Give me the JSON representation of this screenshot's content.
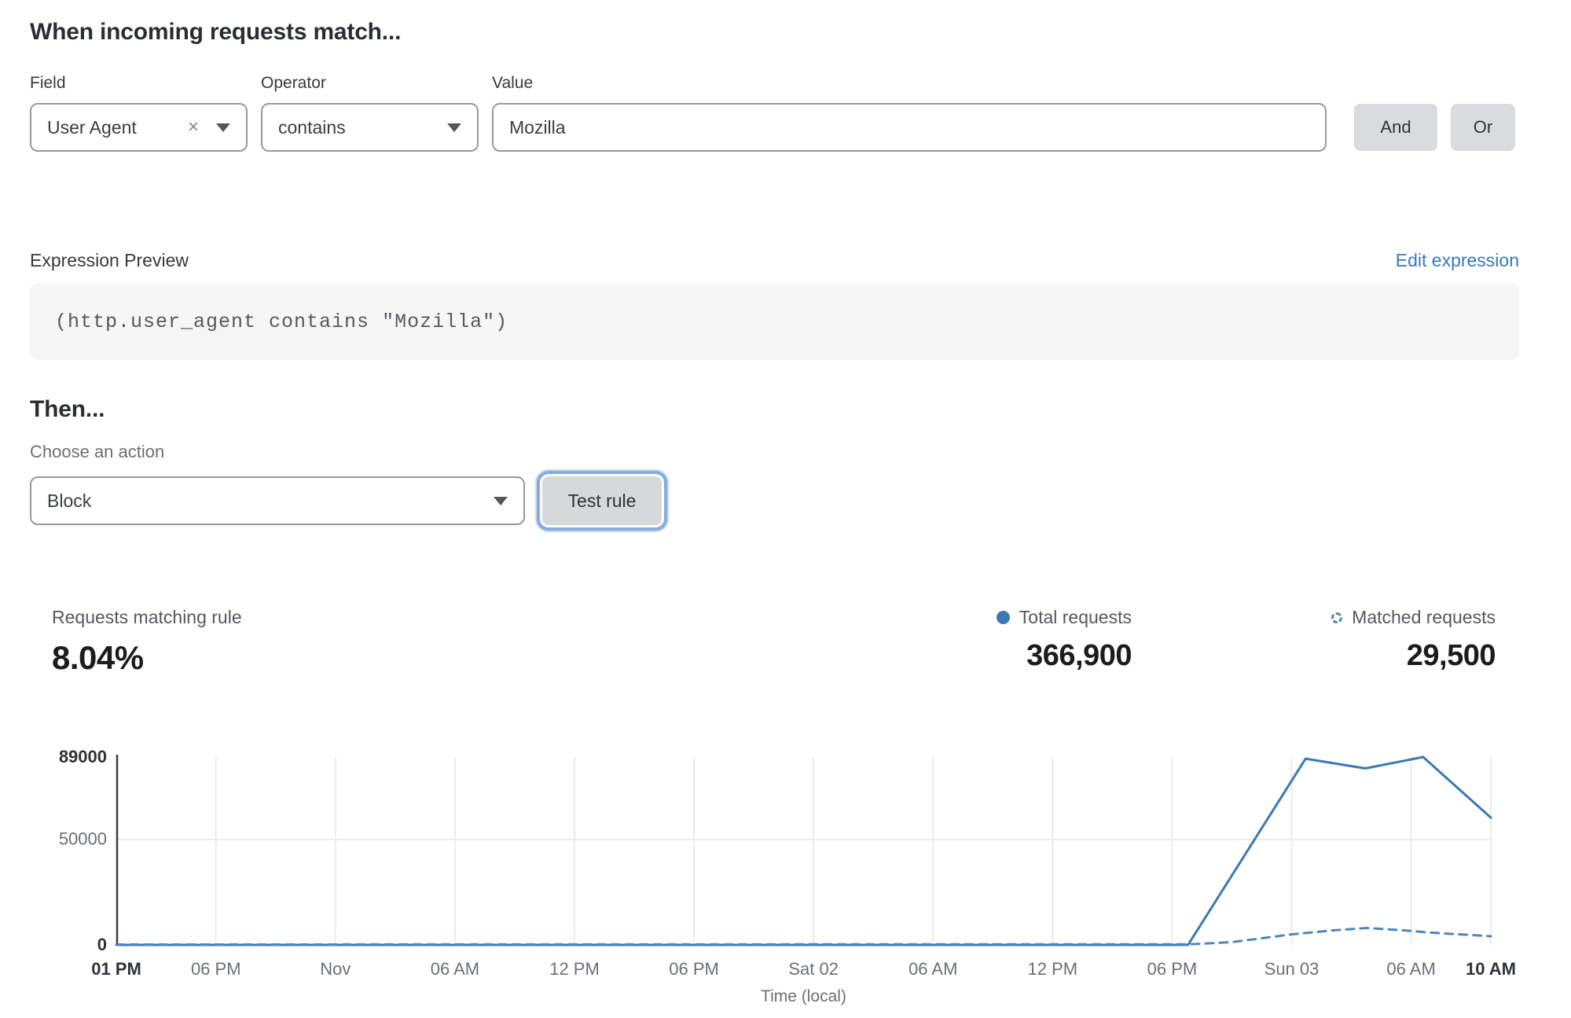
{
  "colors": {
    "accent_blue": "#3b79b3",
    "dashed_blue": "#4f86bd",
    "link_blue": "#3779b6",
    "grid": "#ececec",
    "axis": "#3a3d40",
    "tick_gray": "#6b6f74",
    "tick_dark": "#2f3337"
  },
  "rule_builder": {
    "heading": "When incoming requests match...",
    "field": {
      "label": "Field",
      "value": "User Agent",
      "clear_glyph": "×"
    },
    "operator": {
      "label": "Operator",
      "value": "contains"
    },
    "value": {
      "label": "Value",
      "value": "Mozilla"
    },
    "and_label": "And",
    "or_label": "Or"
  },
  "expression": {
    "label": "Expression Preview",
    "edit_link": "Edit expression",
    "code": "(http.user_agent contains \"Mozilla\")"
  },
  "action": {
    "heading": "Then...",
    "label": "Choose an action",
    "value": "Block",
    "test_button": "Test rule"
  },
  "stats": {
    "matching": {
      "label": "Requests matching rule",
      "value": "8.04%"
    },
    "total": {
      "label": "Total requests",
      "value": "366,900"
    },
    "matched": {
      "label": "Matched requests",
      "value": "29,500"
    }
  },
  "chart_data": {
    "type": "line",
    "title": "",
    "xlabel": "Time (local)",
    "ylabel": "",
    "ylim": [
      0,
      89000
    ],
    "x_range_hours": [
      0,
      69
    ],
    "grid": "vertical-per-tick, horizontal at 50000 only",
    "legend_position": "top-right above chart (with stats)",
    "yticks": [
      {
        "value": 0,
        "label": "0",
        "bold": true,
        "gridline": false
      },
      {
        "value": 50000,
        "label": "50000",
        "bold": false,
        "gridline": true
      },
      {
        "value": 89000,
        "label": "89000",
        "bold": true,
        "gridline": false
      }
    ],
    "xticks": [
      {
        "label": "01 PM",
        "h": 0,
        "bold": true
      },
      {
        "label": "06 PM",
        "h": 5,
        "bold": false
      },
      {
        "label": "Nov",
        "h": 11,
        "bold": false
      },
      {
        "label": "06 AM",
        "h": 17,
        "bold": false
      },
      {
        "label": "12 PM",
        "h": 23,
        "bold": false
      },
      {
        "label": "06 PM",
        "h": 29,
        "bold": false
      },
      {
        "label": "Sat 02",
        "h": 35,
        "bold": false
      },
      {
        "label": "06 AM",
        "h": 41,
        "bold": false
      },
      {
        "label": "12 PM",
        "h": 47,
        "bold": false
      },
      {
        "label": "06 PM",
        "h": 53,
        "bold": false
      },
      {
        "label": "Sun 03",
        "h": 59,
        "bold": false
      },
      {
        "label": "06 AM",
        "h": 65,
        "bold": false
      },
      {
        "label": "10 AM",
        "h": 69,
        "bold": true
      }
    ],
    "series": [
      {
        "name": "Total requests",
        "style": "solid",
        "color": "#3b79b3",
        "points_hour_value": [
          [
            0,
            0
          ],
          [
            53.8,
            0
          ],
          [
            59.7,
            88200
          ],
          [
            62.7,
            83600
          ],
          [
            65.6,
            89000
          ],
          [
            69,
            60300
          ]
        ]
      },
      {
        "name": "Matched requests",
        "style": "dashed",
        "color": "#4f86bd",
        "points_hour_value": [
          [
            0,
            200
          ],
          [
            53.9,
            300
          ],
          [
            56,
            1300
          ],
          [
            59,
            5000
          ],
          [
            61,
            6800
          ],
          [
            62.8,
            8000
          ],
          [
            64.5,
            7000
          ],
          [
            66,
            5800
          ],
          [
            69,
            4100
          ]
        ]
      }
    ]
  }
}
